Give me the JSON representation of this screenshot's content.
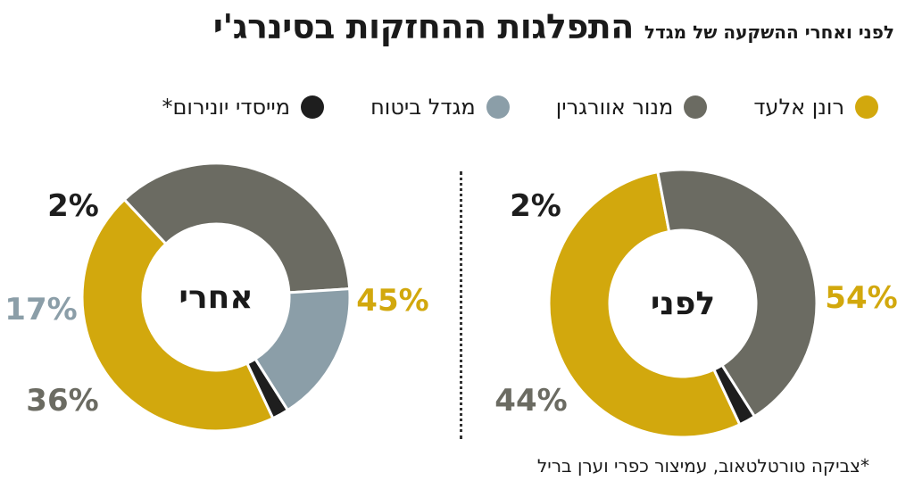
{
  "title": "התפלגות ההחזקות בסינרג'י",
  "subtitle": "לפני ואחרי ההשקעה של מגדל",
  "legend": [
    {
      "label": "רונן אלעד",
      "color": "#d2a80d"
    },
    {
      "label": "מנור אוורגרין",
      "color": "#6b6b62"
    },
    {
      "label": "מגדל ביטוח",
      "color": "#8b9ea8"
    },
    {
      "label": "מייסדי יונירום*",
      "color": "#1e1e1e"
    }
  ],
  "credit": "*צביקה טורטלטאוב, עמיצור כפרי וערן בריל",
  "chart_data": [
    {
      "type": "pie",
      "center_label": "לפני",
      "slices": [
        {
          "series": "רונן אלעד",
          "value": 54,
          "label": "54%",
          "color": "#d2a80d"
        },
        {
          "series": "מנור אוורגרין",
          "value": 44,
          "label": "44%",
          "color": "#6b6b62"
        },
        {
          "series": "מייסדי יונירום*",
          "value": 2,
          "label": "2%",
          "color": "#1e1e1e"
        }
      ]
    },
    {
      "type": "pie",
      "center_label": "אחרי",
      "slices": [
        {
          "series": "רונן אלעד",
          "value": 45,
          "label": "45%",
          "color": "#d2a80d"
        },
        {
          "series": "מנור אוורגרין",
          "value": 36,
          "label": "36%",
          "color": "#6b6b62"
        },
        {
          "series": "מגדל ביטוח",
          "value": 17,
          "label": "17%",
          "color": "#8b9ea8"
        },
        {
          "series": "מייסדי יונירום*",
          "value": 2,
          "label": "2%",
          "color": "#1e1e1e"
        }
      ]
    }
  ]
}
